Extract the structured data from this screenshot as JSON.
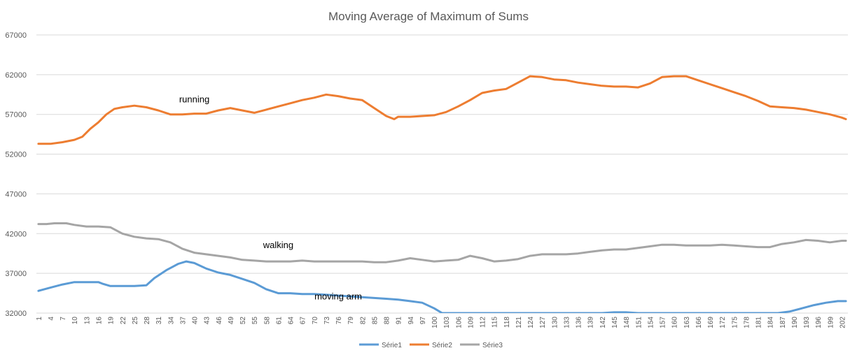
{
  "colors": {
    "series1": "#5B9BD5",
    "series2": "#ED7D31",
    "series3": "#A5A5A5",
    "grid": "#D9D9D9",
    "text": "#595959",
    "annotation_text": "#000000"
  },
  "chart_data": {
    "type": "line",
    "title": "Moving Average of Maximum of Sums",
    "xlabel": "",
    "ylabel": "",
    "ylim": [
      32000,
      67000
    ],
    "ytick_values": [
      32000,
      37000,
      42000,
      47000,
      52000,
      57000,
      62000,
      67000
    ],
    "ytick_labels": [
      "32000",
      "37000",
      "42000",
      "47000",
      "52000",
      "57000",
      "62000",
      "67000"
    ],
    "x_range": [
      1,
      203
    ],
    "xtick_values": [
      1,
      4,
      7,
      10,
      13,
      16,
      19,
      22,
      25,
      28,
      31,
      34,
      37,
      40,
      43,
      46,
      49,
      52,
      55,
      58,
      61,
      64,
      67,
      70,
      73,
      76,
      79,
      82,
      85,
      88,
      91,
      94,
      97,
      100,
      103,
      106,
      109,
      112,
      115,
      118,
      121,
      124,
      127,
      130,
      133,
      136,
      139,
      142,
      145,
      148,
      151,
      154,
      157,
      160,
      163,
      166,
      169,
      172,
      175,
      178,
      181,
      184,
      187,
      190,
      193,
      196,
      199,
      202
    ],
    "grid": true,
    "legend_position": "bottom",
    "annotations": [
      {
        "text": "running",
        "x": 40,
        "y": 58500
      },
      {
        "text": "walking",
        "x": 61,
        "y": 40200
      },
      {
        "text": "moving arm",
        "x": 76,
        "y": 33700
      }
    ],
    "series": [
      {
        "name": "Série1",
        "x": [
          1,
          4,
          7,
          10,
          13,
          16,
          17,
          19,
          22,
          25,
          28,
          30,
          33,
          36,
          38,
          40,
          43,
          46,
          49,
          52,
          55,
          58,
          61,
          64,
          67,
          70,
          73,
          76,
          79,
          82,
          85,
          88,
          91,
          94,
          97,
          100,
          102,
          142,
          145,
          148,
          151,
          186,
          189,
          192,
          195,
          198,
          201,
          203
        ],
        "y": [
          34800,
          35200,
          35600,
          35900,
          35900,
          35900,
          35700,
          35400,
          35400,
          35400,
          35500,
          36400,
          37400,
          38200,
          38500,
          38300,
          37600,
          37100,
          36800,
          36300,
          35800,
          35000,
          34500,
          34500,
          34400,
          34400,
          34300,
          34200,
          34100,
          34000,
          33900,
          33800,
          33700,
          33500,
          33300,
          32600,
          32000,
          32000,
          32100,
          32100,
          32000,
          32000,
          32200,
          32600,
          33000,
          33300,
          33500,
          33500
        ]
      },
      {
        "name": "Série2",
        "x": [
          1,
          4,
          7,
          10,
          12,
          14,
          16,
          18,
          20,
          22,
          25,
          28,
          31,
          34,
          37,
          40,
          43,
          46,
          49,
          52,
          55,
          58,
          61,
          64,
          67,
          70,
          73,
          76,
          79,
          82,
          85,
          88,
          90,
          91,
          94,
          97,
          100,
          103,
          106,
          109,
          112,
          115,
          118,
          121,
          124,
          127,
          130,
          133,
          136,
          139,
          142,
          145,
          148,
          151,
          154,
          157,
          160,
          163,
          166,
          169,
          172,
          175,
          178,
          181,
          184,
          187,
          190,
          193,
          196,
          199,
          202,
          203
        ],
        "y": [
          53300,
          53300,
          53500,
          53800,
          54200,
          55200,
          56000,
          57000,
          57700,
          57900,
          58100,
          57900,
          57500,
          57000,
          57000,
          57100,
          57100,
          57500,
          57800,
          57500,
          57200,
          57600,
          58000,
          58400,
          58800,
          59100,
          59500,
          59300,
          59000,
          58800,
          57800,
          56800,
          56400,
          56700,
          56700,
          56800,
          56900,
          57300,
          58000,
          58800,
          59700,
          60000,
          60200,
          61000,
          61800,
          61700,
          61400,
          61300,
          61000,
          60800,
          60600,
          60500,
          60500,
          60400,
          60900,
          61700,
          61800,
          61800,
          61300,
          60800,
          60300,
          59800,
          59300,
          58700,
          58000,
          57900,
          57800,
          57600,
          57300,
          57000,
          56600,
          56400
        ]
      },
      {
        "name": "Série3",
        "x": [
          1,
          3,
          5,
          8,
          10,
          13,
          16,
          19,
          22,
          25,
          28,
          31,
          34,
          37,
          40,
          43,
          46,
          49,
          52,
          55,
          58,
          61,
          64,
          67,
          70,
          73,
          76,
          79,
          82,
          85,
          88,
          91,
          94,
          97,
          100,
          103,
          106,
          109,
          112,
          115,
          118,
          121,
          124,
          127,
          130,
          133,
          136,
          139,
          142,
          145,
          148,
          151,
          154,
          157,
          160,
          163,
          166,
          169,
          172,
          175,
          178,
          181,
          184,
          187,
          190,
          193,
          196,
          199,
          202,
          203
        ],
        "y": [
          43200,
          43200,
          43300,
          43300,
          43100,
          42900,
          42900,
          42800,
          42000,
          41600,
          41400,
          41300,
          40900,
          40100,
          39600,
          39400,
          39200,
          39000,
          38700,
          38600,
          38500,
          38500,
          38500,
          38600,
          38500,
          38500,
          38500,
          38500,
          38500,
          38400,
          38400,
          38600,
          38900,
          38700,
          38500,
          38600,
          38700,
          39200,
          38900,
          38500,
          38600,
          38800,
          39200,
          39400,
          39400,
          39400,
          39500,
          39700,
          39900,
          40000,
          40000,
          40200,
          40400,
          40600,
          40600,
          40500,
          40500,
          40500,
          40600,
          40500,
          40400,
          40300,
          40300,
          40700,
          40900,
          41200,
          41100,
          40900,
          41100,
          41100
        ]
      }
    ]
  }
}
